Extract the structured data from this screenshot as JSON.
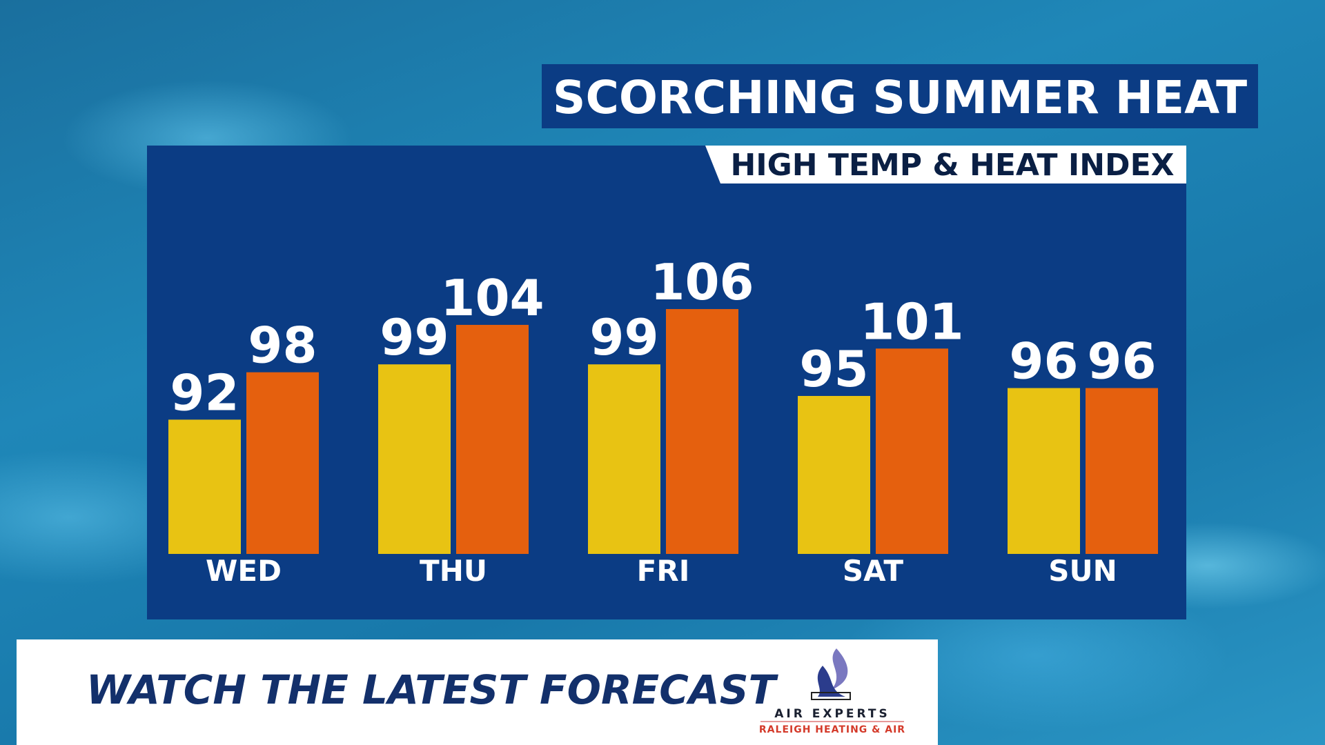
{
  "chart_data": {
    "type": "bar",
    "title": "SCORCHING SUMMER HEAT",
    "subtitle": "HIGH TEMP & HEAT INDEX",
    "categories": [
      "WED",
      "THU",
      "FRI",
      "SAT",
      "SUN"
    ],
    "series": [
      {
        "color": "#e8c313",
        "values": [
          92,
          99,
          99,
          95,
          96
        ]
      },
      {
        "color": "#e5600e",
        "values": [
          98,
          104,
          106,
          101,
          96
        ]
      }
    ],
    "ylim": [
      75,
      115
    ]
  },
  "banner": {
    "headline": "WATCH THE LATEST FORECAST",
    "sponsor": {
      "name": "AIR EXPERTS",
      "tagline": "RALEIGH HEATING & AIR"
    }
  }
}
